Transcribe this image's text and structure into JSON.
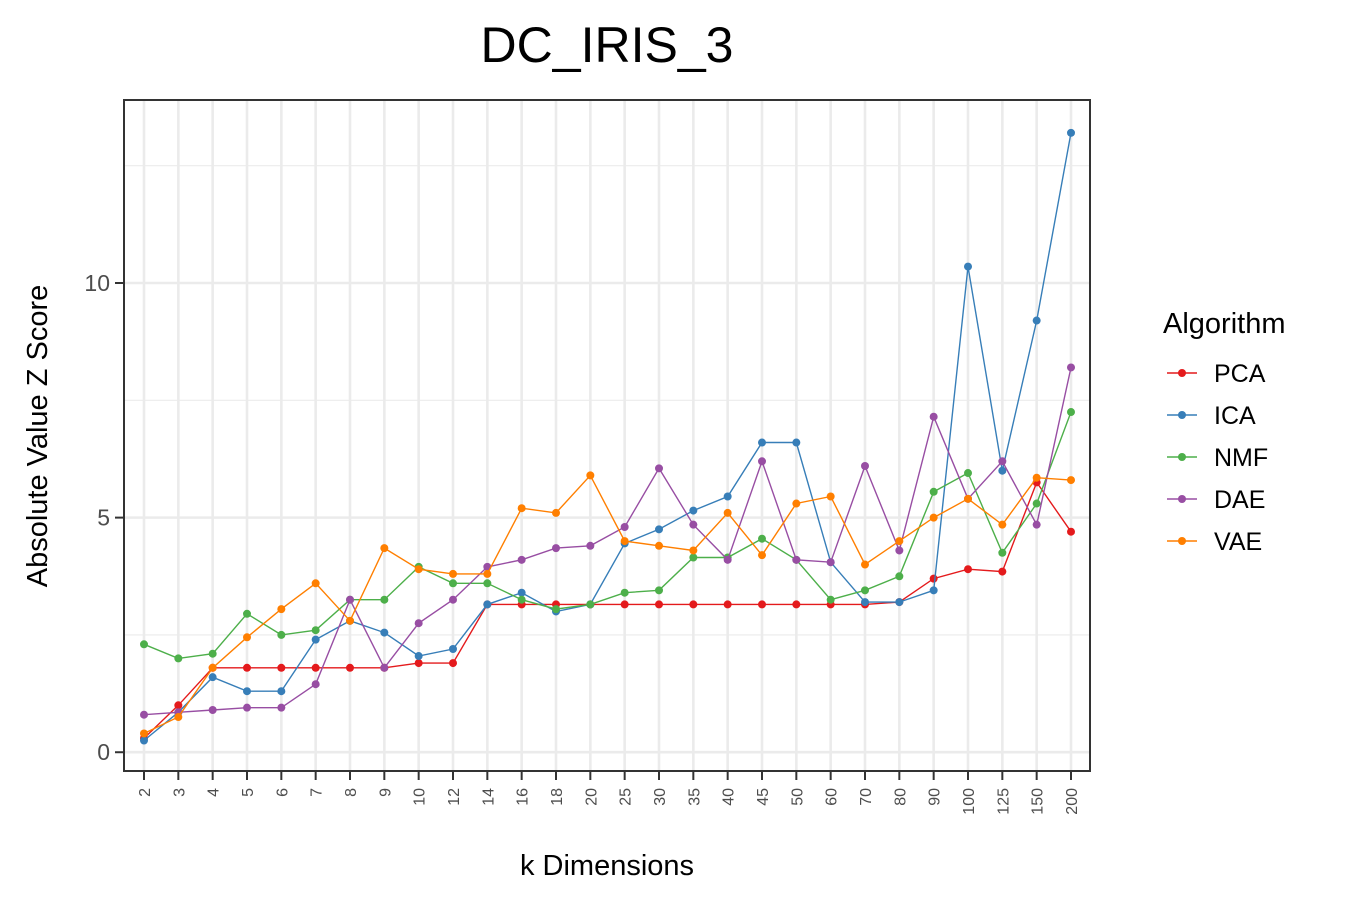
{
  "chart_data": {
    "type": "line",
    "title": "DC_IRIS_3",
    "xlabel": "k Dimensions",
    "ylabel": "Absolute Value Z Score",
    "categories": [
      "2",
      "3",
      "4",
      "5",
      "6",
      "7",
      "8",
      "9",
      "10",
      "12",
      "14",
      "16",
      "18",
      "20",
      "25",
      "30",
      "35",
      "40",
      "45",
      "50",
      "60",
      "70",
      "80",
      "90",
      "100",
      "125",
      "150",
      "200"
    ],
    "ylim": [
      -0.4,
      13.9
    ],
    "yticks": [
      0,
      5,
      10
    ],
    "grid": true,
    "legend": {
      "title": "Algorithm",
      "position": "right"
    },
    "series": [
      {
        "name": "PCA",
        "color": "#e41a1c",
        "values": [
          0.3,
          1.0,
          1.8,
          1.8,
          1.8,
          1.8,
          1.8,
          1.8,
          1.9,
          1.9,
          3.15,
          3.15,
          3.15,
          3.15,
          3.15,
          3.15,
          3.15,
          3.15,
          3.15,
          3.15,
          3.15,
          3.15,
          3.2,
          3.7,
          3.9,
          3.85,
          5.75,
          4.7
        ]
      },
      {
        "name": "ICA",
        "color": "#377eb8",
        "values": [
          0.25,
          0.85,
          1.6,
          1.3,
          1.3,
          2.4,
          2.8,
          2.55,
          2.05,
          2.2,
          3.15,
          3.4,
          3.0,
          3.15,
          4.45,
          4.75,
          5.15,
          5.45,
          6.6,
          6.6,
          4.05,
          3.2,
          3.2,
          3.45,
          10.35,
          6.0,
          9.2,
          13.2
        ]
      },
      {
        "name": "NMF",
        "color": "#4daf4a",
        "values": [
          2.3,
          2.0,
          2.1,
          2.95,
          2.5,
          2.6,
          3.25,
          3.25,
          3.95,
          3.6,
          3.6,
          3.25,
          3.05,
          3.15,
          3.4,
          3.45,
          4.15,
          4.15,
          4.55,
          4.1,
          3.25,
          3.45,
          3.75,
          5.55,
          5.95,
          4.25,
          5.3,
          7.25
        ]
      },
      {
        "name": "DAE",
        "color": "#984ea3",
        "values": [
          0.8,
          0.85,
          0.9,
          0.95,
          0.95,
          1.45,
          3.25,
          1.8,
          2.75,
          3.25,
          3.95,
          4.1,
          4.35,
          4.4,
          4.8,
          6.05,
          4.85,
          4.1,
          6.2,
          4.1,
          4.05,
          6.1,
          4.3,
          7.15,
          5.4,
          6.2,
          4.85,
          8.2
        ]
      },
      {
        "name": "VAE",
        "color": "#ff7f00",
        "values": [
          0.4,
          0.75,
          1.8,
          2.45,
          3.05,
          3.6,
          2.8,
          4.35,
          3.9,
          3.8,
          3.8,
          5.2,
          5.1,
          5.9,
          4.5,
          4.4,
          4.3,
          5.1,
          4.2,
          5.3,
          5.45,
          4.0,
          4.5,
          5.0,
          5.4,
          4.85,
          5.85,
          5.8
        ]
      }
    ]
  }
}
